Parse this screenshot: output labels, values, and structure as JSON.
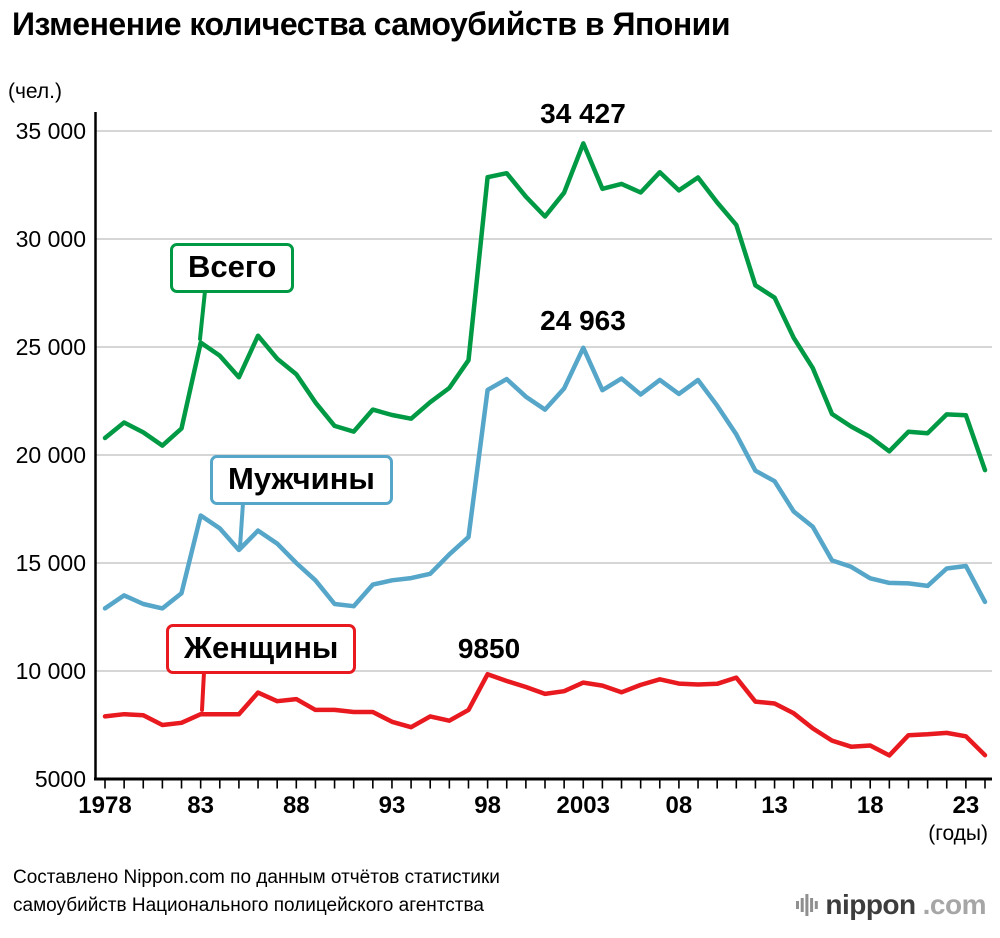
{
  "title": "Изменение количества самоубийств в Японии",
  "y_axis_unit": "(чел.)",
  "x_axis_unit": "(годы)",
  "source": {
    "line1": "Составлено Nippon.com по данным отчётов статистики",
    "line2": "самоубийств Национального полицейского агентства"
  },
  "logo": {
    "name": "nippon",
    "tld": ".com"
  },
  "colors": {
    "total": "#009944",
    "men": "#55A6C9",
    "women": "#E8191F",
    "grid": "#c9c9c9",
    "axis": "#000000"
  },
  "chart_data": {
    "type": "line",
    "x_start_year": 1978,
    "x_end_year": 2024,
    "ylim": [
      5000,
      35000
    ],
    "grid": "horizontal",
    "ytick_values": [
      35000,
      30000,
      25000,
      20000,
      15000,
      10000,
      5000
    ],
    "ytick_labels": [
      "35 000",
      "30 000",
      "25 000",
      "20 000",
      "15 000",
      "10 000",
      "5000"
    ],
    "xticks": [
      {
        "year": 1978,
        "label": "1978"
      },
      {
        "year": 1983,
        "label": "83"
      },
      {
        "year": 1988,
        "label": "88"
      },
      {
        "year": 1993,
        "label": "93"
      },
      {
        "year": 1998,
        "label": "98"
      },
      {
        "year": 2003,
        "label": "2003"
      },
      {
        "year": 2008,
        "label": "08"
      },
      {
        "year": 2013,
        "label": "13"
      },
      {
        "year": 2018,
        "label": "18"
      },
      {
        "year": 2023,
        "label": "23"
      }
    ],
    "series": [
      {
        "name": "Всего",
        "color": "#009944",
        "values": [
          20788,
          21503,
          21048,
          20434,
          21228,
          25202,
          24596,
          23599,
          25524,
          24460,
          23742,
          22436,
          21346,
          21084,
          22104,
          21851,
          21679,
          22445,
          23104,
          24391,
          32863,
          33048,
          31957,
          31042,
          32143,
          34427,
          32325,
          32552,
          32155,
          33093,
          32249,
          32845,
          31690,
          30651,
          27858,
          27283,
          25427,
          24025,
          21897,
          21321,
          20840,
          20169,
          21081,
          21007,
          21881,
          21837,
          19300
        ]
      },
      {
        "name": "Мужчины",
        "color": "#55A6C9",
        "values": [
          12900,
          13500,
          13100,
          12900,
          13600,
          17200,
          16600,
          15600,
          16500,
          15900,
          15000,
          14200,
          13100,
          13000,
          14000,
          14200,
          14300,
          14500,
          15400,
          16200,
          23013,
          23512,
          22700,
          22100,
          23080,
          24963,
          23000,
          23540,
          22800,
          23478,
          22831,
          23472,
          22283,
          20955,
          19273,
          18787,
          17386,
          16681,
          15121,
          14826,
          14290,
          14078,
          14055,
          13939,
          14746,
          14862,
          13200
        ]
      },
      {
        "name": "Женщины",
        "color": "#E8191F",
        "values": [
          7900,
          8000,
          7950,
          7500,
          7600,
          8000,
          8000,
          8000,
          9000,
          8600,
          8700,
          8200,
          8200,
          8100,
          8100,
          7650,
          7400,
          7900,
          7700,
          8200,
          9850,
          9536,
          9257,
          8942,
          9063,
          9464,
          9325,
          9012,
          9355,
          9615,
          9418,
          9373,
          9407,
          9696,
          8585,
          8496,
          8041,
          7344,
          6776,
          6495,
          6550,
          6091,
          7026,
          7068,
          7135,
          6975,
          6100
        ]
      }
    ],
    "annotations": [
      {
        "text": "34 427",
        "series": "Всего",
        "year": 2003,
        "value": 34427
      },
      {
        "text": "24 963",
        "series": "Мужчины",
        "year": 2003,
        "value": 24963
      },
      {
        "text": "9850",
        "series": "Женщины",
        "year": 1998,
        "value": 9850
      }
    ]
  }
}
